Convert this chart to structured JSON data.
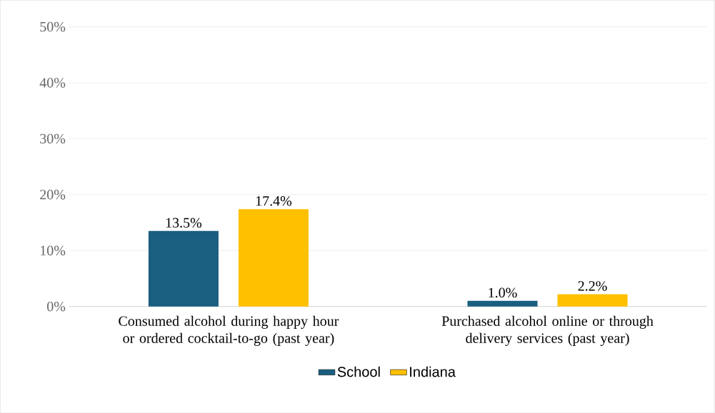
{
  "chart_data": {
    "type": "bar",
    "categories": [
      "Consumed alcohol during happy hour or ordered cocktail-to-go (past year)",
      "Purchased alcohol online or through delivery services (past year)"
    ],
    "series": [
      {
        "name": "School",
        "color": "#1a5e80",
        "values": [
          13.5,
          1.0
        ],
        "value_labels": [
          "13.5%",
          "1.0%"
        ]
      },
      {
        "name": "Indiana",
        "color": "#ffc000",
        "values": [
          17.4,
          2.2
        ],
        "value_labels": [
          "17.4%",
          "2.2%"
        ]
      }
    ],
    "ylim": [
      0,
      50
    ],
    "yticks": [
      {
        "value": 0,
        "label": "0%"
      },
      {
        "value": 10,
        "label": "10%"
      },
      {
        "value": 20,
        "label": "20%"
      },
      {
        "value": 30,
        "label": "30%"
      },
      {
        "value": 40,
        "label": "40%"
      },
      {
        "value": 50,
        "label": "50%"
      }
    ],
    "grid": "y",
    "legend": "bottom"
  }
}
